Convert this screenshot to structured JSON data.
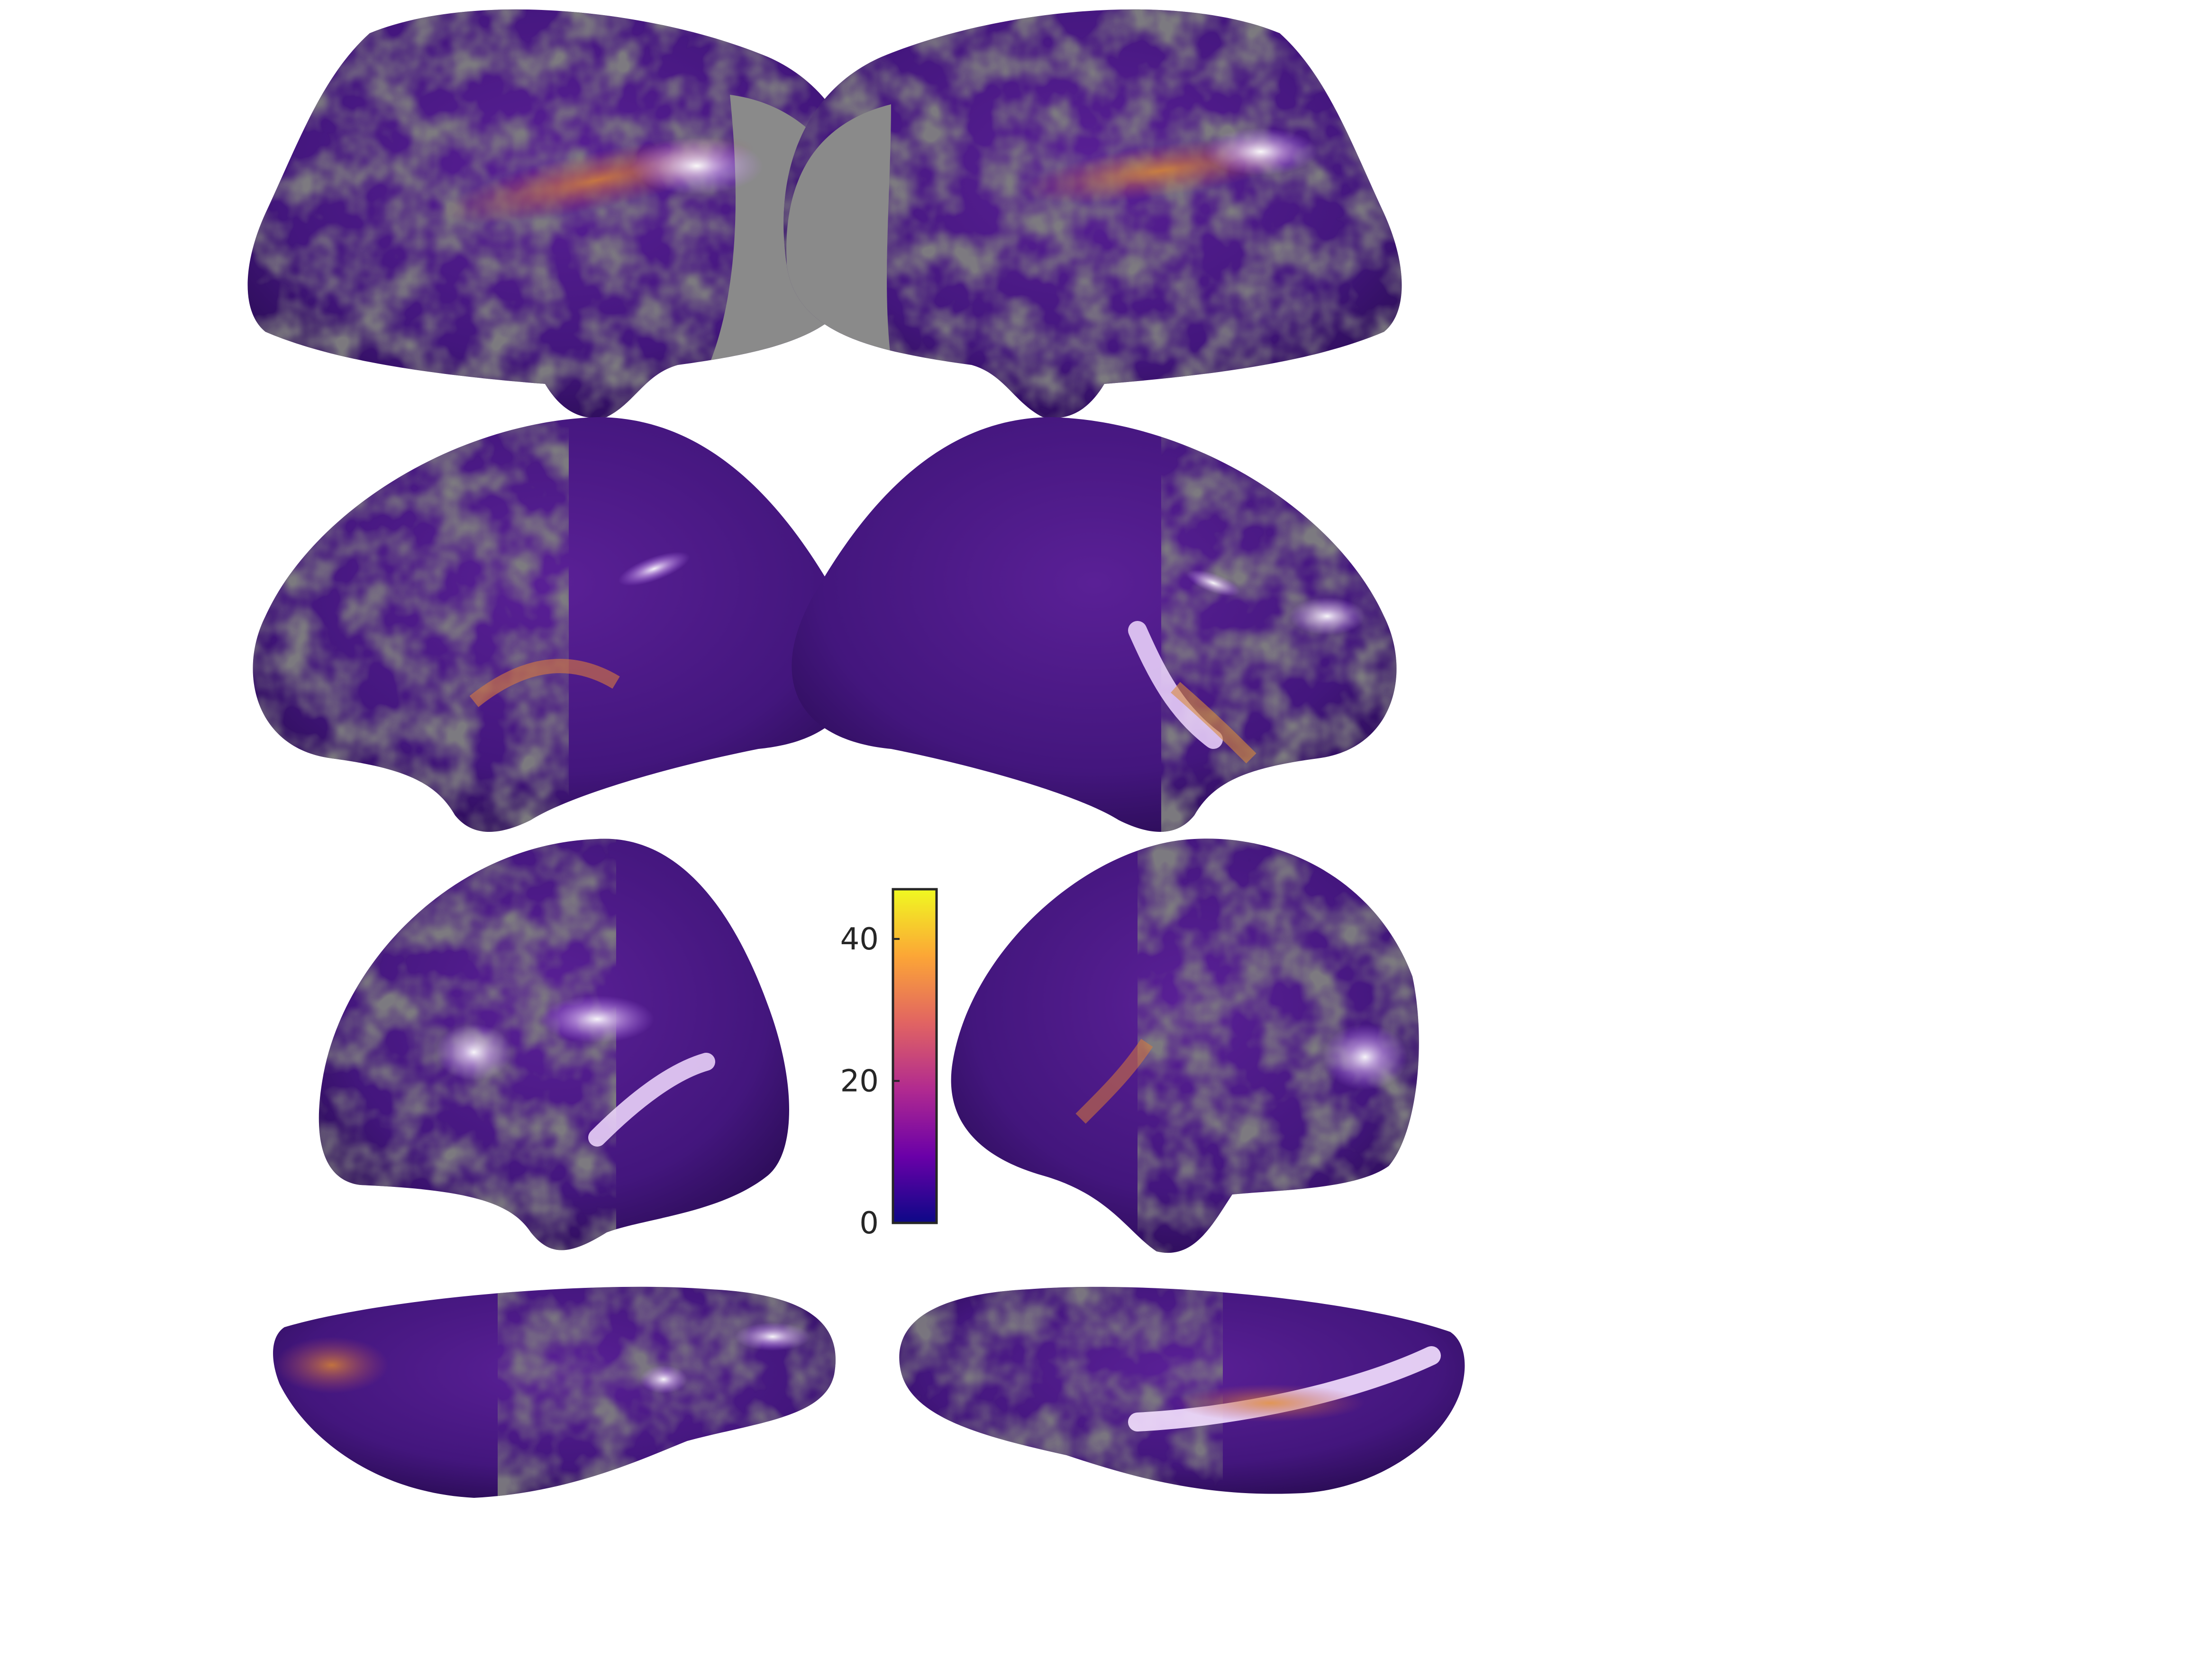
{
  "colorbar": {
    "colormap": "plasma",
    "colors": [
      "#0d0887",
      "#6a00a8",
      "#b12a90",
      "#e16462",
      "#fca636",
      "#f0f921"
    ],
    "range": [
      0,
      47
    ],
    "ticks": [
      {
        "value": 40,
        "label": "40"
      },
      {
        "value": 20,
        "label": "20"
      },
      {
        "value": 0,
        "label": "0"
      }
    ]
  },
  "surface": {
    "base_color": "#4a1b86",
    "mask_color": "#808080",
    "highlight_color": "#f6e8ff",
    "warm_color": "#d0722e"
  },
  "views": [
    {
      "name": "left-hemisphere-lateral-view"
    },
    {
      "name": "right-hemisphere-lateral-view"
    },
    {
      "name": "left-hemisphere-medial-view"
    },
    {
      "name": "right-hemisphere-medial-view"
    },
    {
      "name": "left-hemisphere-anterior-view"
    },
    {
      "name": "right-hemisphere-posterior-view"
    },
    {
      "name": "left-hemisphere-ventral-view"
    },
    {
      "name": "right-hemisphere-ventral-view"
    }
  ]
}
